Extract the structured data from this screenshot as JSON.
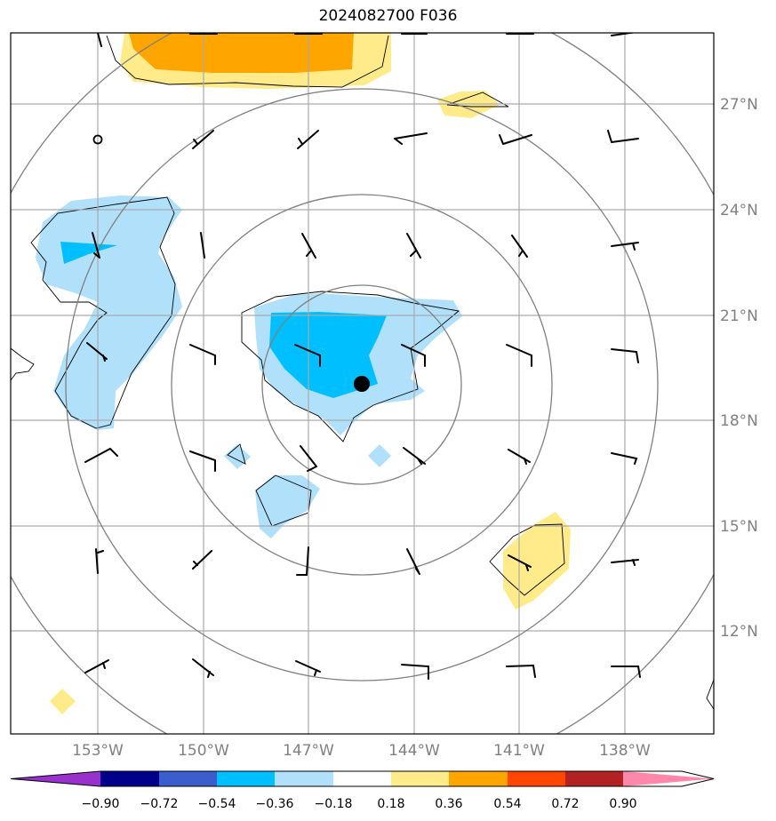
{
  "title": "2024082700 F036",
  "lat_labels": [
    "27°N",
    "24°N",
    "21°N",
    "18°N",
    "15°N",
    "12°N"
  ],
  "lon_labels": [
    "153°W",
    "150°W",
    "147°W",
    "144°W",
    "141°W",
    "138°W"
  ],
  "colorbar": {
    "labels": [
      "−0.90",
      "−0.72",
      "−0.54",
      "−0.36",
      "−0.18",
      "0.18",
      "0.36",
      "0.54",
      "0.72",
      "0.90"
    ],
    "colors": [
      "#9932cc",
      "#00008b",
      "#3a5fcd",
      "#00bfff",
      "#b0e0fa",
      "#ffffff",
      "#ffeb8a",
      "#ffa500",
      "#ff4500",
      "#b22222",
      "#ff88aa"
    ]
  },
  "storm_center": {
    "lat": 19.0,
    "lon": -145.5
  }
}
